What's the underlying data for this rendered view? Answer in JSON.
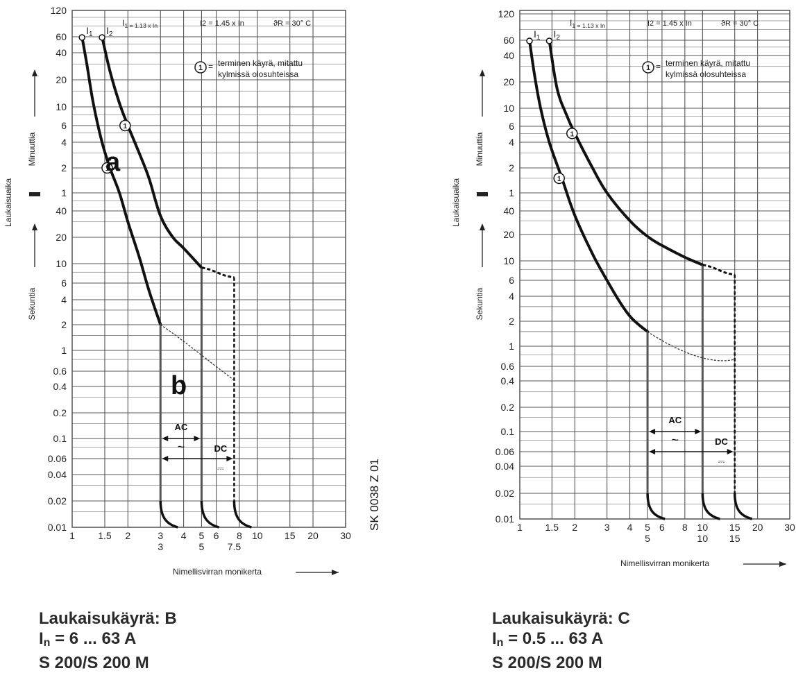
{
  "chart_data": [
    {
      "type": "line",
      "curve": "B",
      "y_axis_label": "Laukaisuaika",
      "y_minutes_label": "Minuuttia",
      "y_seconds_label": "Sekuntia",
      "x_axis_label": "Nimellisvirran monikerta",
      "x_scale": "log",
      "y_scale": "log",
      "xlim": [
        1,
        30
      ],
      "x_ticks": [
        "1",
        "1.5",
        "2",
        "3",
        "4",
        "5",
        "6",
        "8",
        "10",
        "15",
        "20",
        "30"
      ],
      "x_ticks_second_row": [
        "3",
        "5",
        "7.5"
      ],
      "y_minute_ticks": [
        "120",
        "60",
        "40",
        "20",
        "10",
        "6",
        "4",
        "2",
        "1"
      ],
      "y_second_ticks": [
        "40",
        "20",
        "10",
        "6",
        "4",
        "2",
        "1",
        "0.6",
        "0.4",
        "0.2",
        "0.1",
        "0.06",
        "0.04",
        "0.02",
        "0.01"
      ],
      "header": {
        "i1": "I1 = 1.13 x In",
        "i2": "I2 = 1.45 x In",
        "theta": "ϑR = 30° C"
      },
      "legend": {
        "symbol": "1",
        "line1": "terminen käyrä, mitattu",
        "line2": "kylmissä olosuhteissa"
      },
      "curve_labels": {
        "i1": "I1",
        "i2": "I2",
        "zone_a": "a",
        "zone_b": "b"
      },
      "ac": {
        "label": "AC",
        "symbol": "~",
        "from": 3,
        "to": 5
      },
      "dc": {
        "label": "DC",
        "symbol": "⎓",
        "from": 3,
        "to": 7.5
      },
      "series": [
        {
          "name": "I1",
          "x": [
            1.13,
            1.2,
            1.3,
            1.45,
            1.6,
            1.8,
            2.0,
            2.3,
            2.6,
            3.0
          ],
          "y_seconds": [
            3600,
            1800,
            660,
            240,
            120,
            60,
            30,
            12,
            5,
            2
          ]
        },
        {
          "name": "I2",
          "x": [
            1.45,
            1.6,
            1.8,
            2.0,
            2.3,
            2.6,
            3.0,
            3.5,
            4.0,
            5.0
          ],
          "y_seconds": [
            3600,
            1500,
            660,
            360,
            180,
            90,
            35,
            20,
            15,
            9
          ]
        }
      ],
      "side_text": "SK 0038 Z 01",
      "caption": {
        "title": "Laukaisukäyrä: B",
        "rating_prefix": "I",
        "rating_sub": "n",
        "rating_value": " = 6 ... 63 A",
        "model": "S 200/S 200 M"
      }
    },
    {
      "type": "line",
      "curve": "C",
      "y_axis_label": "Laukaisuaika",
      "y_minutes_label": "Minuuttia",
      "y_seconds_label": "Sekuntia",
      "x_axis_label": "Nimellisvirran monikerta",
      "x_scale": "log",
      "y_scale": "log",
      "xlim": [
        1,
        30
      ],
      "x_ticks": [
        "1",
        "1.5",
        "2",
        "3",
        "4",
        "5",
        "6",
        "8",
        "10",
        "15",
        "20",
        "30"
      ],
      "x_ticks_second_row": [
        "5",
        "10",
        "15"
      ],
      "y_minute_ticks": [
        "120",
        "60",
        "40",
        "20",
        "10",
        "6",
        "4",
        "2",
        "1"
      ],
      "y_second_ticks": [
        "40",
        "20",
        "10",
        "6",
        "4",
        "2",
        "1",
        "0.6",
        "0.4",
        "0.2",
        "0.1",
        "0.06",
        "0.04",
        "0.02",
        "0.01"
      ],
      "header": {
        "i1": "I1 = 1.13 x In",
        "i2": "I2 = 1.45 x In",
        "theta": "ϑR = 30° C"
      },
      "legend": {
        "symbol": "1",
        "line1": "terminen käyrä, mitattu",
        "line2": "kylmissä olosuhteissa"
      },
      "curve_labels": {
        "i1": "I1",
        "i2": "I2"
      },
      "ac": {
        "label": "AC",
        "symbol": "~",
        "from": 5,
        "to": 10
      },
      "dc": {
        "label": "DC",
        "symbol": "⎓",
        "from": 5,
        "to": 15
      },
      "series": [
        {
          "name": "I1",
          "x": [
            1.13,
            1.2,
            1.3,
            1.45,
            1.7,
            2.0,
            2.5,
            3.0,
            3.5,
            4.0,
            4.5,
            5.0
          ],
          "y_seconds": [
            3600,
            1500,
            600,
            240,
            90,
            35,
            12,
            6,
            3.5,
            2.3,
            1.8,
            1.5
          ]
        },
        {
          "name": "I2",
          "x": [
            1.45,
            1.6,
            1.8,
            2.0,
            2.5,
            3.0,
            4.0,
            5.0,
            6.0,
            8.0,
            10.0
          ],
          "y_seconds": [
            3600,
            1000,
            500,
            300,
            120,
            60,
            30,
            19,
            15,
            11,
            9
          ]
        }
      ],
      "caption": {
        "title": "Laukaisukäyrä: C",
        "rating_prefix": "I",
        "rating_sub": "n",
        "rating_value": " = 0.5 ... 63 A",
        "model": "S 200/S 200 M"
      }
    }
  ]
}
